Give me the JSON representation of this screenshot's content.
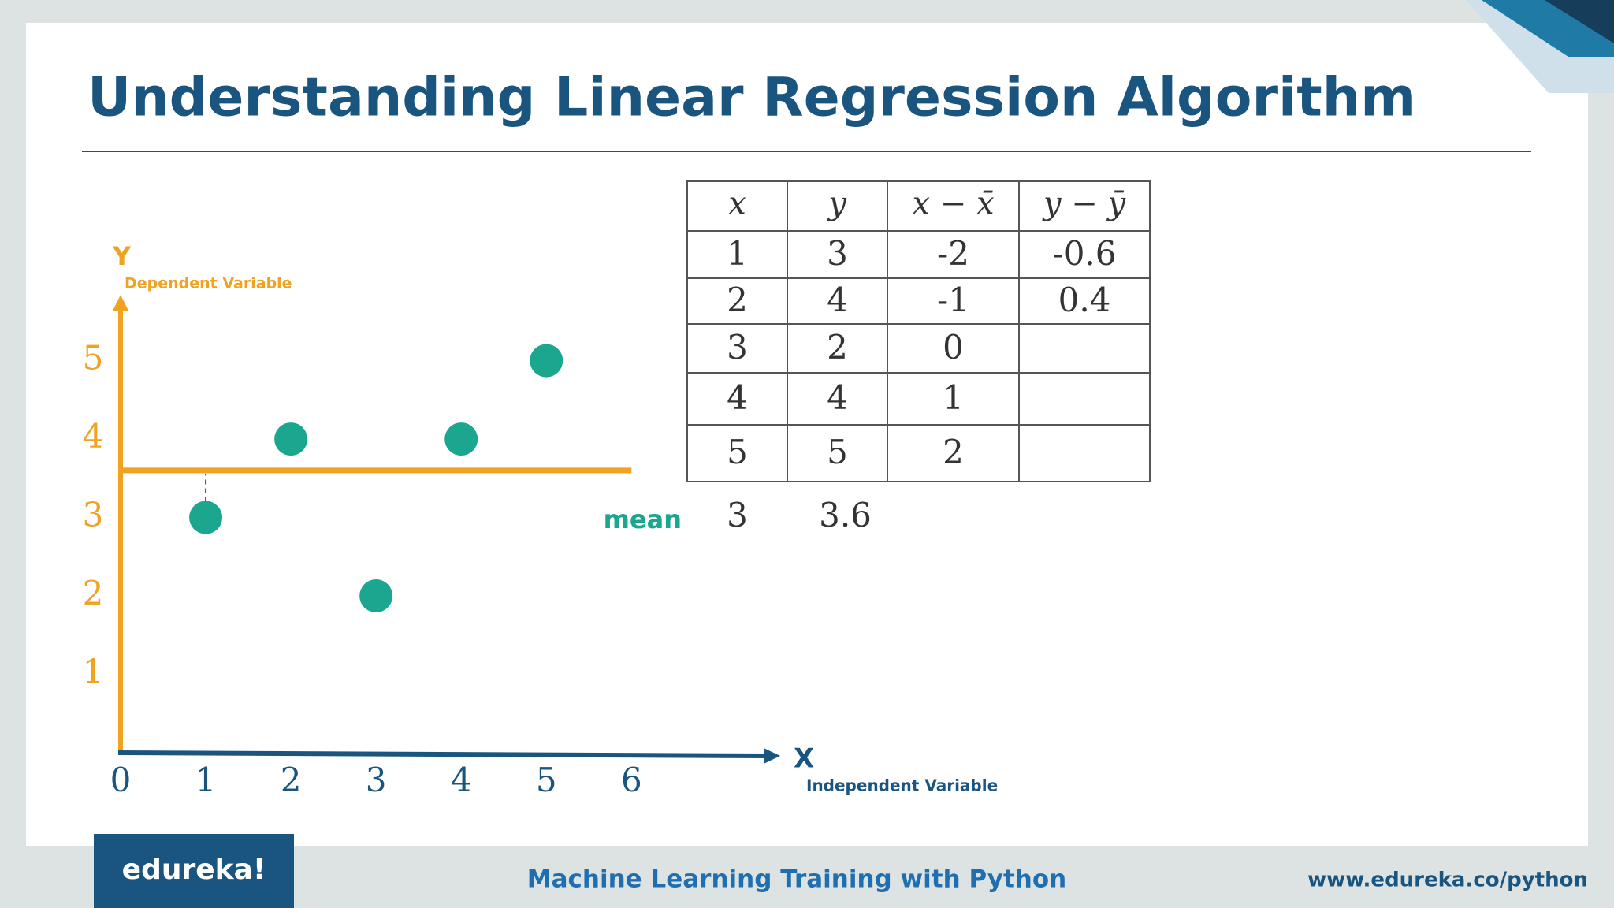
{
  "slide": {
    "title": "Understanding Linear Regression Algorithm",
    "logo": "edureka!",
    "course": "Machine Learning Training with Python",
    "url": "www.edureka.co/python"
  },
  "chart_data": {
    "type": "scatter",
    "x": [
      1,
      2,
      3,
      4,
      5
    ],
    "y": [
      3,
      4,
      2,
      4,
      5
    ],
    "color": "#1ba68f",
    "mean_y": 3.6,
    "mean_color": "#f0a220",
    "xlim": [
      0,
      7.7
    ],
    "ylim": [
      0,
      5.8
    ],
    "xticks": [
      0,
      1,
      2,
      3,
      4,
      5,
      6
    ],
    "yticks": [
      1,
      2,
      3,
      4,
      5
    ],
    "x_axis_color": "#1a5580",
    "y_axis_color": "#f0a220",
    "x_label": "X",
    "x_sublabel": "Independent Variable",
    "y_label": "Y",
    "y_sublabel": "Dependent Variable"
  },
  "table": {
    "headers": [
      "x",
      "y",
      "x − x̄",
      "y − ȳ"
    ],
    "rows": [
      [
        "1",
        "3",
        "-2",
        "-0.6"
      ],
      [
        "2",
        "4",
        "-1",
        "0.4"
      ],
      [
        "3",
        "2",
        "0",
        null
      ],
      [
        "4",
        "4",
        "1",
        null
      ],
      [
        "5",
        "5",
        "2",
        null
      ]
    ],
    "mean_label": "mean",
    "means": [
      "3",
      "3.6"
    ]
  }
}
